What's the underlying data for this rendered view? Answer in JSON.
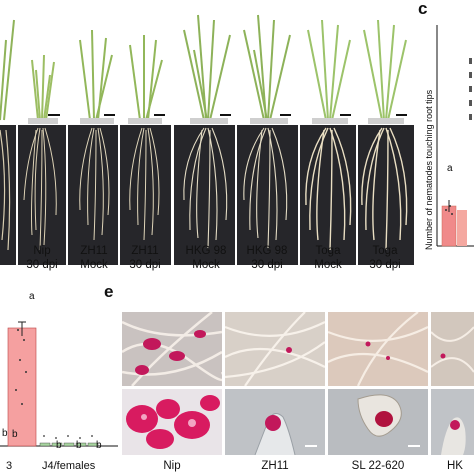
{
  "panel_letters": {
    "c": "c",
    "e": "e"
  },
  "panel_top": {
    "captions": [
      {
        "line1": "Nip",
        "line2": "30 dpi"
      },
      {
        "line1": "ZH11",
        "line2": "Mock"
      },
      {
        "line1": "ZH11",
        "line2": "30 dpi"
      },
      {
        "line1": "HKG 98",
        "line2": "Mock"
      },
      {
        "line1": "HKG 98",
        "line2": "30 dpi"
      },
      {
        "line1": "Toga",
        "line2": "Mock"
      },
      {
        "line1": "Toga",
        "line2": "30 dpi"
      }
    ]
  },
  "panel_c": {
    "ylabel": "Number of nematodes touching root tips",
    "sig_letter": "a",
    "bar_color": "#f08a8a",
    "bar_value_fraction": 0.17
  },
  "panel_bottom_left": {
    "sig_top": "a",
    "sig_b": [
      "b",
      "b",
      "b",
      "b",
      "b"
    ],
    "xlabel_right": "J4/females",
    "xlabel_left_fragment": "3",
    "bar_color": "#f5a0a0"
  },
  "panel_e": {
    "captions": [
      "Nip",
      "ZH11",
      "SL 22-620",
      "HK"
    ]
  },
  "colors": {
    "root_bg": "#1f1f23",
    "shoot_bg": "#ffffff",
    "stain": "#d81b60"
  }
}
